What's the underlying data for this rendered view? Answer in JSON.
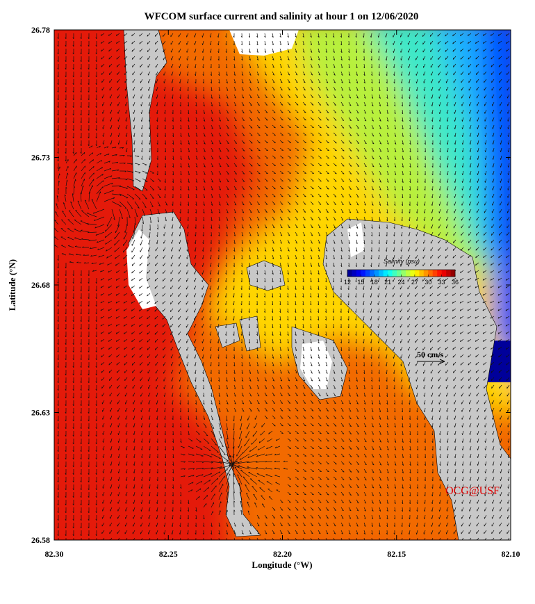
{
  "map": {
    "title": "WFCOM surface current and salinity at hour 1 on 12/06/2020",
    "x_axis": {
      "label": "Longitude (°W)",
      "lim": [
        82.3,
        82.1
      ],
      "ticks": [
        {
          "value": 82.3,
          "label": "82.30"
        },
        82.25,
        {
          "value": 82.2,
          "label": "82.20"
        },
        82.15,
        {
          "value": 82.1,
          "label": "82.10"
        }
      ]
    },
    "y_axis": {
      "label": "Latitude (°N)",
      "lim": [
        26.58,
        26.78
      ],
      "ticks": [
        26.58,
        26.63,
        26.68,
        26.73,
        26.78
      ]
    },
    "colorbar": {
      "label": "Salinity (psu)",
      "lim": [
        12,
        36
      ],
      "ticks": [
        12,
        15,
        18,
        21,
        24,
        27,
        30,
        33,
        36
      ]
    },
    "scale_arrow": "50 cm/s",
    "credit": "OCG@USF"
  }
}
